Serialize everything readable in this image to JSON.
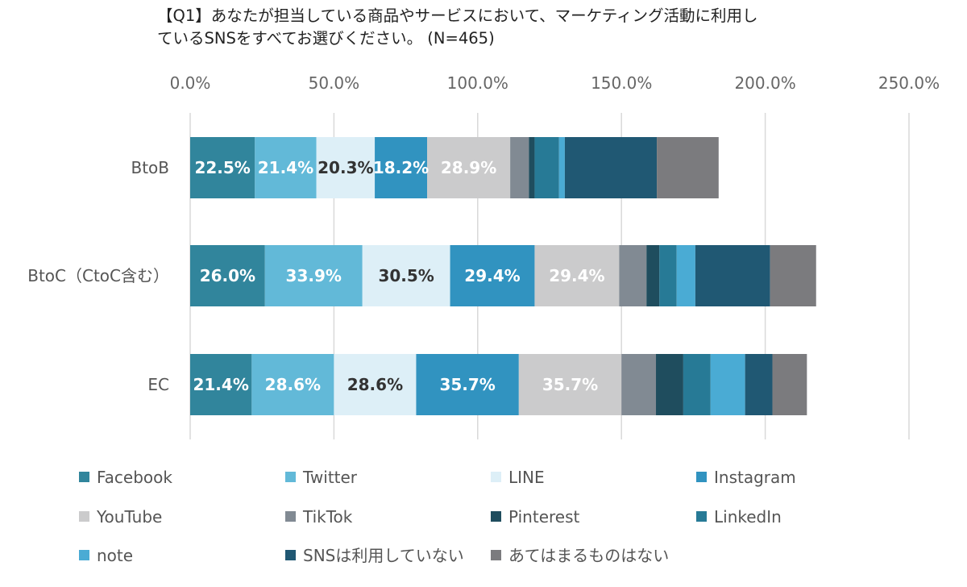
{
  "title": {
    "line1": "【Q1】あなたが担当している商品やサービスにおいて、マーケティング活動に利用し",
    "line2": "ているSNSをすべてお選びください。 (N=465)"
  },
  "chart_data": {
    "type": "bar",
    "orientation": "horizontal",
    "stacked": true,
    "xlim": [
      0,
      250
    ],
    "x_ticks": [
      "0.0%",
      "50.0%",
      "100.0%",
      "150.0%",
      "200.0%",
      "250.0%"
    ],
    "x_tick_values": [
      0,
      50,
      100,
      150,
      200,
      250
    ],
    "x_axis_position": "top",
    "grid": true,
    "legend_position": "bottom",
    "categories": [
      "BtoB",
      "BtoC（CtoC含む）",
      "EC"
    ],
    "series": [
      {
        "name": "Facebook",
        "color": "#31859C",
        "label_color": "#ffffff",
        "values": [
          22.5,
          26.0,
          21.4
        ],
        "labels": [
          "22.5%",
          "26.0%",
          "21.4%"
        ]
      },
      {
        "name": "Twitter",
        "color": "#62B9D8",
        "label_color": "#ffffff",
        "values": [
          21.4,
          33.9,
          28.6
        ],
        "labels": [
          "21.4%",
          "33.9%",
          "28.6%"
        ]
      },
      {
        "name": "LINE",
        "color": "#DDEFF7",
        "label_color": "#333333",
        "values": [
          20.3,
          30.5,
          28.6
        ],
        "labels": [
          "20.3%",
          "30.5%",
          "28.6%"
        ]
      },
      {
        "name": "Instagram",
        "color": "#3193C0",
        "label_color": "#ffffff",
        "values": [
          18.2,
          29.4,
          35.7
        ],
        "labels": [
          "18.2%",
          "29.4%",
          "35.7%"
        ]
      },
      {
        "name": "YouTube",
        "color": "#CBCBCC",
        "label_color": "#ffffff",
        "values": [
          28.9,
          29.4,
          35.7
        ],
        "labels": [
          "28.9%",
          "29.4%",
          "35.7%"
        ]
      },
      {
        "name": "TikTok",
        "color": "#818A93",
        "label_color": "#ffffff",
        "values": [
          6.5,
          9.5,
          12.0
        ],
        "labels": [
          "",
          "",
          ""
        ]
      },
      {
        "name": "Pinterest",
        "color": "#1F4D5E",
        "label_color": "#ffffff",
        "values": [
          2.0,
          4.5,
          9.5
        ],
        "labels": [
          "",
          "",
          ""
        ]
      },
      {
        "name": "LinkedIn",
        "color": "#277A96",
        "label_color": "#ffffff",
        "values": [
          8.5,
          6.0,
          9.5
        ],
        "labels": [
          "",
          "",
          ""
        ]
      },
      {
        "name": "note",
        "color": "#4AABD4",
        "label_color": "#ffffff",
        "values": [
          2.0,
          6.5,
          12.0
        ],
        "labels": [
          "",
          "",
          ""
        ]
      },
      {
        "name": "SNSは利用していない",
        "color": "#205873",
        "label_color": "#ffffff",
        "values": [
          32.0,
          26.0,
          9.5
        ],
        "labels": [
          "",
          "",
          ""
        ]
      },
      {
        "name": "あてはまるものはない",
        "color": "#7B7B7E",
        "label_color": "#ffffff",
        "values": [
          21.5,
          16.0,
          12.0
        ],
        "labels": [
          "",
          "",
          ""
        ]
      }
    ]
  }
}
